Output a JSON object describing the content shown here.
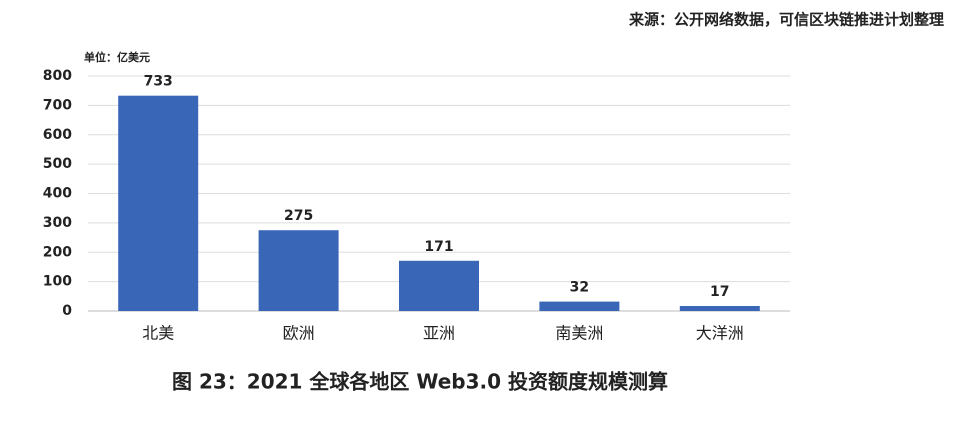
{
  "chart_data": {
    "type": "bar",
    "source": "来源：公开网络数据，可信区块链推进计划整理",
    "unit_label": "单位：亿美元",
    "title": "图 23：2021 全球各地区 Web3.0 投资额度规模测算",
    "categories": [
      "北美",
      "欧洲",
      "亚洲",
      "南美洲",
      "大洋洲"
    ],
    "values": [
      733,
      275,
      171,
      32,
      17
    ],
    "color": "#3a66b8",
    "ylim": [
      0,
      800
    ],
    "yticks": [
      0,
      100,
      200,
      300,
      400,
      500,
      600,
      700,
      800
    ],
    "grid": true
  }
}
